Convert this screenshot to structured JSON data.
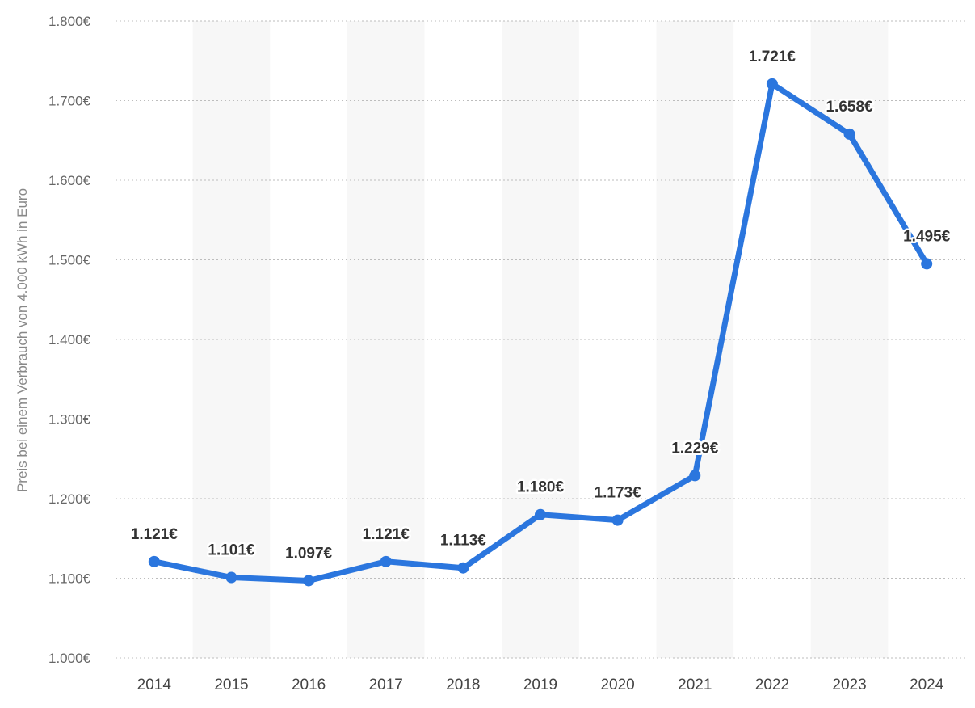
{
  "chart_data": {
    "type": "line",
    "categories": [
      "2014",
      "2015",
      "2016",
      "2017",
      "2018",
      "2019",
      "2020",
      "2021",
      "2022",
      "2023",
      "2024"
    ],
    "series": [
      {
        "values": [
          1121,
          1101,
          1097,
          1121,
          1113,
          1180,
          1173,
          1229,
          1721,
          1658,
          1495
        ],
        "labels": [
          "1.121€",
          "1.101€",
          "1.097€",
          "1.121€",
          "1.113€",
          "1.180€",
          "1.173€",
          "1.229€",
          "1.721€",
          "1.658€",
          "1.495€"
        ]
      }
    ],
    "title": "",
    "xlabel": "",
    "ylabel": "Preis bei einem Verbrauch von 4.000 kWh in Euro",
    "ylim": [
      1000,
      1800
    ],
    "yticks": [
      1000,
      1100,
      1200,
      1300,
      1400,
      1500,
      1600,
      1700,
      1800
    ],
    "ytick_labels": [
      "1.000€",
      "1.100€",
      "1.200€",
      "1.300€",
      "1.400€",
      "1.500€",
      "1.600€",
      "1.700€",
      "1.800€"
    ],
    "grid": "horizontal-dotted",
    "colors": {
      "line": "#2b76de",
      "band": "#f7f7f7",
      "grid": "#bdbdbd"
    }
  }
}
